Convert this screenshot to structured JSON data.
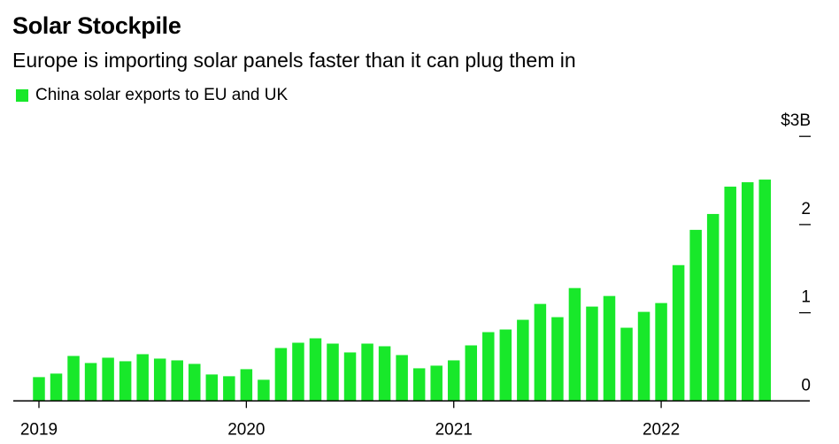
{
  "chart_data": {
    "type": "bar",
    "title": "Solar Stockpile",
    "subtitle": "Europe is importing solar panels faster than it can plug them in",
    "legend": [
      {
        "name": "China solar exports to EU and UK",
        "color": "#18e82a"
      }
    ],
    "legend_placement": "top-left",
    "x_ticks": [
      "2019",
      "2020",
      "2021",
      "2022"
    ],
    "y_ticks": [
      "0",
      "1",
      "2",
      "$3B"
    ],
    "ylim": [
      0,
      3
    ],
    "y_axis_side": "right",
    "grid": false,
    "series": [
      {
        "name": "China solar exports to EU and UK",
        "unit": "$B",
        "categories": [
          "2019-01",
          "2019-02",
          "2019-03",
          "2019-04",
          "2019-05",
          "2019-06",
          "2019-07",
          "2019-08",
          "2019-09",
          "2019-10",
          "2019-11",
          "2019-12",
          "2020-01",
          "2020-02",
          "2020-03",
          "2020-04",
          "2020-05",
          "2020-06",
          "2020-07",
          "2020-08",
          "2020-09",
          "2020-10",
          "2020-11",
          "2020-12",
          "2021-01",
          "2021-02",
          "2021-03",
          "2021-04",
          "2021-05",
          "2021-06",
          "2021-07",
          "2021-08",
          "2021-09",
          "2021-10",
          "2021-11",
          "2021-12",
          "2022-01",
          "2022-02",
          "2022-03",
          "2022-04",
          "2022-05",
          "2022-06",
          "2022-07"
        ],
        "values": [
          0.27,
          0.31,
          0.51,
          0.43,
          0.49,
          0.45,
          0.53,
          0.48,
          0.46,
          0.42,
          0.3,
          0.28,
          0.36,
          0.24,
          0.6,
          0.66,
          0.71,
          0.65,
          0.55,
          0.65,
          0.62,
          0.52,
          0.37,
          0.4,
          0.46,
          0.63,
          0.78,
          0.81,
          0.92,
          1.1,
          0.95,
          1.28,
          1.07,
          1.19,
          0.83,
          1.01,
          1.11,
          1.54,
          1.94,
          2.12,
          2.43,
          2.48,
          2.51
        ]
      }
    ]
  }
}
